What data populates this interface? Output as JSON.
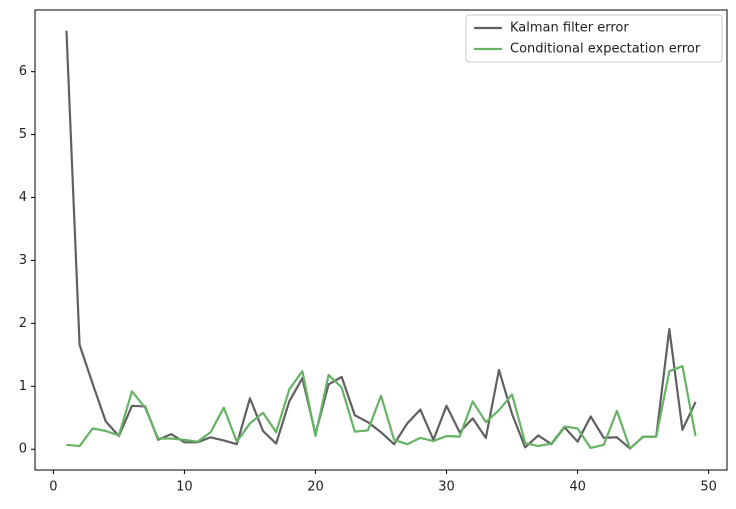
{
  "chart_data": {
    "type": "line",
    "x": [
      1,
      2,
      3,
      4,
      5,
      6,
      7,
      8,
      9,
      10,
      11,
      12,
      13,
      14,
      15,
      16,
      17,
      18,
      19,
      20,
      21,
      22,
      23,
      24,
      25,
      26,
      27,
      28,
      29,
      30,
      31,
      32,
      33,
      34,
      35,
      36,
      37,
      38,
      39,
      40,
      41,
      42,
      43,
      44,
      45,
      46,
      47,
      48,
      49
    ],
    "series": [
      {
        "name": "Kalman filter error",
        "color": "#606060",
        "values": [
          6.65,
          1.66,
          1.04,
          0.44,
          0.21,
          0.69,
          0.68,
          0.15,
          0.24,
          0.11,
          0.11,
          0.19,
          0.14,
          0.08,
          0.81,
          0.29,
          0.09,
          0.76,
          1.13,
          0.24,
          1.03,
          1.15,
          0.54,
          0.43,
          0.27,
          0.08,
          0.41,
          0.63,
          0.15,
          0.69,
          0.27,
          0.49,
          0.18,
          1.26,
          0.56,
          0.03,
          0.22,
          0.08,
          0.35,
          0.12,
          0.52,
          0.18,
          0.19,
          0.01,
          0.2,
          0.2,
          1.91,
          0.31,
          0.75
        ]
      },
      {
        "name": "Conditional expectation error",
        "color": "#66b366",
        "values": [
          0.07,
          0.05,
          0.33,
          0.29,
          0.22,
          0.92,
          0.66,
          0.17,
          0.17,
          0.15,
          0.12,
          0.27,
          0.66,
          0.12,
          0.41,
          0.58,
          0.27,
          0.95,
          1.24,
          0.21,
          1.18,
          0.98,
          0.28,
          0.3,
          0.85,
          0.15,
          0.08,
          0.18,
          0.13,
          0.21,
          0.2,
          0.76,
          0.43,
          0.62,
          0.87,
          0.1,
          0.05,
          0.09,
          0.36,
          0.33,
          0.02,
          0.07,
          0.61,
          0.01,
          0.2,
          0.2,
          1.24,
          1.32,
          0.21
        ]
      }
    ],
    "xlim": [
      -1.4,
      51.4
    ],
    "xticks": [
      0,
      10,
      20,
      30,
      40,
      50
    ],
    "ylim": [
      -0.33,
      6.98
    ],
    "yticks": [
      0,
      1,
      2,
      3,
      4,
      5,
      6
    ],
    "legend": "upper right"
  }
}
